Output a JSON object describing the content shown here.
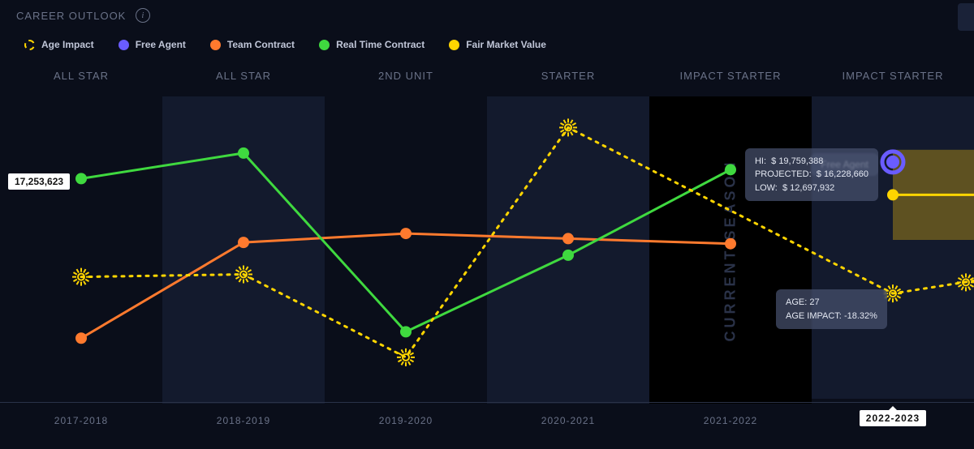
{
  "title": "CAREER OUTLOOK",
  "legend": {
    "age_impact": "Age Impact",
    "free_agent": "Free Agent",
    "team_contract": "Team Contract",
    "real_time": "Real Time Contract",
    "fair_market": "Fair Market Value"
  },
  "colors": {
    "age_impact": "#ffd500",
    "free_agent": "#6a5cff",
    "team_contract": "#ff7a2e",
    "real_time": "#3fd93f",
    "fair_market": "#ffd500",
    "bg": "#0a0e1a",
    "shade": "#131a2d",
    "current": "#000000",
    "axis_text": "#6a7288",
    "fair_band": "#9c8018"
  },
  "chart": {
    "type": "line",
    "y_min": 0,
    "y_max": 24000000,
    "y_ref_value": 17253623,
    "y_ref_label": "17,253,623",
    "seasons": [
      {
        "label": "2017-2018",
        "role": "ALL STAR",
        "shade": false
      },
      {
        "label": "2018-2019",
        "role": "ALL STAR",
        "shade": true
      },
      {
        "label": "2019-2020",
        "role": "2ND UNIT",
        "shade": false
      },
      {
        "label": "2020-2021",
        "role": "STARTER",
        "shade": true
      },
      {
        "label": "2021-2022",
        "role": "IMPACT STARTER",
        "shade": false,
        "current": true
      },
      {
        "label": "2022-2023",
        "role": "IMPACT STARTER",
        "shade": true,
        "active_foot": true
      }
    ],
    "current_season_text": "CURRENT SEASON",
    "series": {
      "age_impact": {
        "style": "dotted",
        "color": "#ffd500",
        "marker": "burst",
        "values": [
          9800000,
          10000000,
          3500000,
          21500000,
          null,
          8500000
        ],
        "trailing": 9500000
      },
      "team_contract": {
        "style": "solid",
        "color": "#ff7a2e",
        "marker": "circle",
        "values": [
          5000000,
          12500000,
          13200000,
          12800000,
          12400000,
          null
        ]
      },
      "real_time": {
        "style": "solid",
        "color": "#3fd93f",
        "marker": "circle",
        "values": [
          17500000,
          19500000,
          5500000,
          11500000,
          18200000,
          null
        ]
      },
      "free_agent": {
        "style": "point",
        "color": "#6a5cff",
        "marker": "big",
        "values": [
          null,
          null,
          null,
          null,
          null,
          18800000
        ]
      },
      "fair_market": {
        "style": "band_point",
        "color": "#ffd500",
        "marker": "circle",
        "values": [
          null,
          null,
          null,
          null,
          null,
          16228660
        ],
        "band": {
          "hi": 19759388,
          "low": 12697932
        },
        "trailing": 16228660
      }
    }
  },
  "tooltips": {
    "free_agent_label": "Free Agent",
    "projection": {
      "hi_label": "HI:",
      "hi_value": "$ 19,759,388",
      "proj_label": "PROJECTED:",
      "proj_value": "$ 16,228,660",
      "low_label": "LOW:",
      "low_value": "$ 12,697,932"
    },
    "age": {
      "age_label": "AGE:",
      "age_value": "27",
      "impact_label": "AGE IMPACT:",
      "impact_value": "-18.32%"
    }
  }
}
